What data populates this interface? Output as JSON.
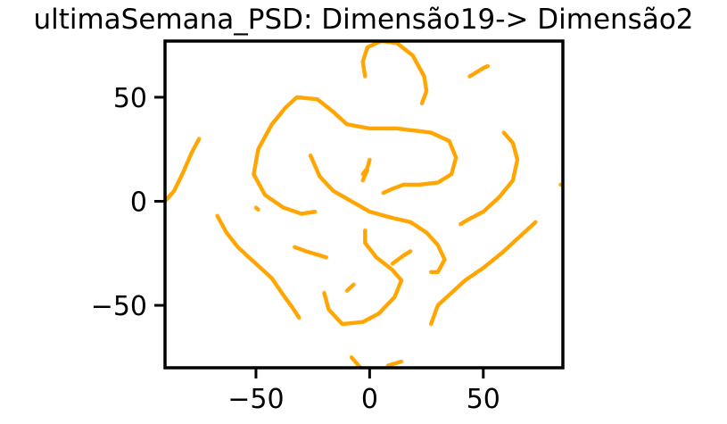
{
  "chart_data": {
    "type": "scatter",
    "title": "ultimaSemana_PSD: Dimensão19-> Dimensão2",
    "xlabel": "",
    "ylabel": "",
    "xlim": [
      -90,
      85
    ],
    "ylim": [
      -80,
      77
    ],
    "xticks": [
      -50,
      0,
      50
    ],
    "yticks": [
      -50,
      0,
      50
    ],
    "xtick_labels": [
      "−50",
      "0",
      "50"
    ],
    "ytick_labels": [
      "−50",
      "0",
      "50"
    ],
    "grid": false,
    "color": "#FFA500",
    "series": [
      {
        "segments": [
          [
            [
              -90,
              0
            ],
            [
              -86,
              5
            ],
            [
              -82,
              14
            ],
            [
              -78,
              24
            ],
            [
              -75,
              30
            ]
          ],
          [
            [
              -67,
              -7
            ],
            [
              -63,
              -15
            ],
            [
              -58,
              -22
            ],
            [
              -50,
              -30
            ],
            [
              -43,
              -37
            ],
            [
              -38,
              -45
            ],
            [
              -34,
              -51
            ],
            [
              -31,
              -56
            ]
          ],
          [
            [
              -33,
              -22
            ],
            [
              -28,
              -24
            ],
            [
              -22,
              -26
            ],
            [
              -19,
              -27
            ]
          ],
          [
            [
              -50,
              -3
            ],
            [
              -49,
              -4
            ]
          ],
          [
            [
              -24,
              -5
            ],
            [
              -30,
              -6
            ],
            [
              -38,
              -3
            ],
            [
              -46,
              3
            ],
            [
              -51,
              13
            ],
            [
              -49,
              25
            ],
            [
              -43,
              37
            ],
            [
              -37,
              45
            ],
            [
              -32,
              50
            ],
            [
              -23,
              49
            ],
            [
              -16,
              43
            ],
            [
              -10,
              37
            ],
            [
              0,
              35
            ],
            [
              12,
              35
            ],
            [
              27,
              33
            ],
            [
              35,
              29
            ],
            [
              38,
              21
            ],
            [
              36,
              13
            ],
            [
              30,
              9
            ],
            [
              22,
              8
            ],
            [
              15,
              8
            ],
            [
              10,
              6
            ],
            [
              6,
              4
            ]
          ],
          [
            [
              -26,
              22
            ],
            [
              -22,
              12
            ],
            [
              -16,
              5
            ],
            [
              -8,
              0
            ],
            [
              0,
              -5
            ],
            [
              10,
              -8
            ],
            [
              18,
              -10
            ],
            [
              25,
              -15
            ],
            [
              30,
              -21
            ],
            [
              33,
              -28
            ],
            [
              30,
              -34
            ],
            [
              27,
              -34
            ]
          ],
          [
            [
              -3,
              13
            ],
            [
              -1,
              16
            ],
            [
              0,
              20
            ]
          ],
          [
            [
              -2,
              -14
            ],
            [
              -2,
              -20
            ],
            [
              3,
              -27
            ],
            [
              10,
              -33
            ],
            [
              14,
              -38
            ],
            [
              11,
              -46
            ],
            [
              4,
              -54
            ],
            [
              -3,
              -58
            ],
            [
              -12,
              -59
            ],
            [
              -18,
              -52
            ],
            [
              -20,
              -44
            ]
          ],
          [
            [
              -10,
              -43
            ],
            [
              -7,
              -40
            ]
          ],
          [
            [
              10,
              -30
            ],
            [
              15,
              -26
            ],
            [
              18,
              -24
            ]
          ],
          [
            [
              -8,
              -75
            ],
            [
              -4,
              -80
            ]
          ],
          [
            [
              8,
              -79
            ],
            [
              14,
              -77
            ]
          ],
          [
            [
              -3,
              10
            ],
            [
              -1,
              15
            ]
          ],
          [
            [
              -2,
              60
            ],
            [
              -3,
              67
            ],
            [
              -1,
              74
            ],
            [
              5,
              77
            ],
            [
              12,
              76
            ],
            [
              19,
              70
            ],
            [
              24,
              60
            ],
            [
              25,
              53
            ],
            [
              23,
              47
            ]
          ],
          [
            [
              44,
              60
            ],
            [
              50,
              64
            ],
            [
              52,
              65
            ]
          ],
          [
            [
              59,
              33
            ],
            [
              63,
              28
            ],
            [
              65,
              20
            ],
            [
              63,
              10
            ],
            [
              57,
              2
            ],
            [
              50,
              -5
            ],
            [
              43,
              -9
            ],
            [
              40,
              -11
            ]
          ],
          [
            [
              73,
              -10
            ],
            [
              66,
              -17
            ],
            [
              58,
              -25
            ],
            [
              50,
              -32
            ],
            [
              42,
              -38
            ],
            [
              35,
              -45
            ],
            [
              30,
              -50
            ],
            [
              27,
              -59
            ]
          ],
          [
            [
              84,
              8
            ],
            [
              85,
              8
            ]
          ]
        ]
      }
    ]
  }
}
